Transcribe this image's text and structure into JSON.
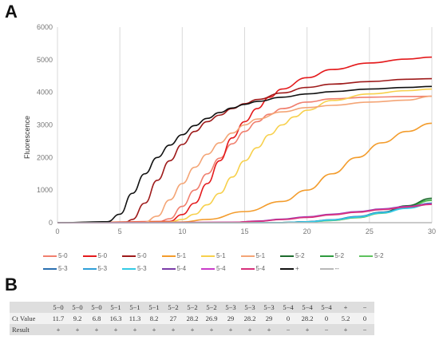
{
  "panel_a": "A",
  "panel_b": "B",
  "chart_data": {
    "type": "line",
    "ylabel": "Fluorescence",
    "xlim": [
      0,
      30
    ],
    "ylim": [
      0,
      6000
    ],
    "xticks": [
      0,
      5,
      10,
      15,
      20,
      25,
      30
    ],
    "yticks": [
      0,
      1000,
      2000,
      3000,
      4000,
      5000,
      6000
    ],
    "grid": "vertical",
    "legend_position": "bottom",
    "series": [
      {
        "name": "5-0",
        "color": "#f07f6e",
        "x": [
          0,
          8,
          9,
          10,
          11,
          12,
          13,
          14,
          15,
          16,
          17,
          18,
          20,
          22,
          25,
          28,
          30
        ],
        "y": [
          0,
          10,
          120,
          500,
          1000,
          1500,
          1980,
          2420,
          2800,
          3100,
          3330,
          3500,
          3700,
          3800,
          3850,
          3870,
          3880
        ]
      },
      {
        "name": "5-0",
        "color": "#e41a1c",
        "x": [
          0,
          9,
          10,
          11,
          12,
          13,
          14,
          15,
          16,
          17,
          18,
          20,
          22,
          25,
          28,
          30
        ],
        "y": [
          0,
          40,
          250,
          600,
          1200,
          1900,
          2600,
          3100,
          3500,
          3850,
          4100,
          4450,
          4700,
          4900,
          5020,
          5080
        ]
      },
      {
        "name": "5-0",
        "color": "#9e1a1a",
        "x": [
          0,
          5.5,
          6,
          7,
          8,
          9,
          10,
          11,
          12,
          13,
          14,
          15,
          16,
          18,
          20,
          22,
          25,
          28,
          30
        ],
        "y": [
          0,
          20,
          100,
          600,
          1300,
          1900,
          2400,
          2800,
          3100,
          3300,
          3500,
          3650,
          3780,
          3980,
          4150,
          4250,
          4330,
          4400,
          4420
        ]
      },
      {
        "name": "5-1",
        "color": "#f39c2c",
        "x": [
          0,
          10,
          12,
          15,
          18,
          20,
          22,
          24,
          26,
          28,
          30
        ],
        "y": [
          0,
          20,
          100,
          340,
          650,
          1000,
          1500,
          2000,
          2450,
          2800,
          3050
        ]
      },
      {
        "name": "5-1",
        "color": "#f7d04c",
        "x": [
          0,
          9,
          10,
          11,
          12,
          13,
          14,
          15,
          16,
          17,
          18,
          19,
          20,
          22,
          25,
          28,
          30
        ],
        "y": [
          0,
          20,
          100,
          260,
          550,
          900,
          1400,
          1900,
          2300,
          2700,
          3000,
          3250,
          3450,
          3750,
          3950,
          4050,
          4100
        ]
      },
      {
        "name": "5-1",
        "color": "#f4a576",
        "x": [
          0,
          7,
          8,
          9,
          10,
          11,
          12,
          13,
          14,
          15,
          16,
          18,
          20,
          22,
          25,
          28,
          30
        ],
        "y": [
          0,
          20,
          200,
          700,
          1200,
          1700,
          2100,
          2450,
          2750,
          3000,
          3180,
          3400,
          3530,
          3600,
          3700,
          3760,
          3880
        ]
      },
      {
        "name": "5-2",
        "color": "#1d6b2e",
        "x": [
          0,
          18,
          20,
          22,
          24,
          26,
          28,
          30
        ],
        "y": [
          0,
          5,
          30,
          80,
          180,
          320,
          520,
          750
        ]
      },
      {
        "name": "5-2",
        "color": "#2e9a3e",
        "x": [
          0,
          18,
          20,
          22,
          24,
          26,
          28,
          30
        ],
        "y": [
          0,
          5,
          25,
          70,
          160,
          300,
          490,
          700
        ]
      },
      {
        "name": "5-2",
        "color": "#5ec25e",
        "x": [
          0,
          18,
          20,
          22,
          24,
          26,
          28,
          30
        ],
        "y": [
          0,
          5,
          22,
          65,
          150,
          290,
          470,
          680
        ]
      },
      {
        "name": "5-3",
        "color": "#2a6fb0",
        "x": [
          0,
          18,
          20,
          22,
          24,
          26,
          28,
          30
        ],
        "y": [
          0,
          5,
          30,
          90,
          190,
          320,
          460,
          600
        ]
      },
      {
        "name": "5-3",
        "color": "#2f9fd8",
        "x": [
          0,
          18,
          20,
          22,
          24,
          26,
          28,
          30
        ],
        "y": [
          0,
          5,
          28,
          85,
          180,
          310,
          450,
          590
        ]
      },
      {
        "name": "5-3",
        "color": "#33cbe5",
        "x": [
          0,
          18,
          20,
          22,
          24,
          26,
          28,
          30
        ],
        "y": [
          0,
          5,
          25,
          80,
          170,
          300,
          440,
          580
        ]
      },
      {
        "name": "5-4",
        "color": "#7a3ca8",
        "x": [
          0,
          14,
          16,
          18,
          20,
          22,
          24,
          26,
          28,
          30
        ],
        "y": [
          0,
          10,
          50,
          110,
          180,
          260,
          340,
          420,
          500,
          580
        ]
      },
      {
        "name": "5-4",
        "color": "#c93cc9",
        "x": [
          0,
          14,
          16,
          18,
          20,
          22,
          24,
          26,
          28,
          30
        ],
        "y": [
          0,
          10,
          45,
          100,
          170,
          250,
          330,
          410,
          490,
          570
        ]
      },
      {
        "name": "5-4",
        "color": "#d7307a",
        "x": [
          0,
          14,
          16,
          18,
          20,
          22,
          24,
          26,
          28,
          30
        ],
        "y": [
          0,
          10,
          40,
          95,
          160,
          240,
          320,
          400,
          480,
          560
        ]
      },
      {
        "name": "+",
        "color": "#111111",
        "x": [
          0,
          4,
          5,
          6,
          7,
          8,
          9,
          10,
          11,
          12,
          13,
          14,
          15,
          16,
          18,
          20,
          22,
          25,
          28,
          30
        ],
        "y": [
          0,
          30,
          260,
          900,
          1500,
          2000,
          2380,
          2700,
          2980,
          3200,
          3380,
          3520,
          3630,
          3720,
          3850,
          3950,
          4020,
          4100,
          4150,
          4180
        ]
      },
      {
        "name": "--",
        "color": "#b8b8b8",
        "x": [
          0,
          30
        ],
        "y": [
          0,
          0
        ]
      }
    ]
  },
  "legend": [
    {
      "label": "5-0",
      "color": "#f07f6e"
    },
    {
      "label": "5-0",
      "color": "#e41a1c"
    },
    {
      "label": "5-0",
      "color": "#9e1a1a"
    },
    {
      "label": "5-1",
      "color": "#f39c2c"
    },
    {
      "label": "5-1",
      "color": "#f7d04c"
    },
    {
      "label": "5-1",
      "color": "#f4a576"
    },
    {
      "label": "5-2",
      "color": "#1d6b2e"
    },
    {
      "label": "5-2",
      "color": "#2e9a3e"
    },
    {
      "label": "5-2",
      "color": "#5ec25e"
    },
    {
      "label": "5-3",
      "color": "#2a6fb0"
    },
    {
      "label": "5-3",
      "color": "#2f9fd8"
    },
    {
      "label": "5-3",
      "color": "#33cbe5"
    },
    {
      "label": "5-4",
      "color": "#7a3ca8"
    },
    {
      "label": "5-4",
      "color": "#c93cc9"
    },
    {
      "label": "5-4",
      "color": "#d7307a"
    },
    {
      "label": "+",
      "color": "#111111"
    },
    {
      "label": "--",
      "color": "#b8b8b8"
    }
  ],
  "table": {
    "columns": [
      "5−0",
      "5−0",
      "5−0",
      "5−1",
      "5−1",
      "5−1",
      "5−2",
      "5−2",
      "5−2",
      "5−3",
      "5−3",
      "5−3",
      "5−4",
      "5−4",
      "5−4",
      "+",
      "−"
    ],
    "rows": [
      {
        "label": "Ct Value",
        "values": [
          "11.7",
          "9.2",
          "6.8",
          "16.3",
          "11.3",
          "8.2",
          "27",
          "28.2",
          "26.9",
          "29",
          "28.2",
          "29",
          "0",
          "28.2",
          "0",
          "5.2",
          "0"
        ]
      },
      {
        "label": "Result",
        "values": [
          "+",
          "+",
          "+",
          "+",
          "+",
          "+",
          "+",
          "+",
          "+",
          "+",
          "+",
          "+",
          "−",
          "+",
          "−",
          "+",
          "−"
        ]
      }
    ]
  }
}
